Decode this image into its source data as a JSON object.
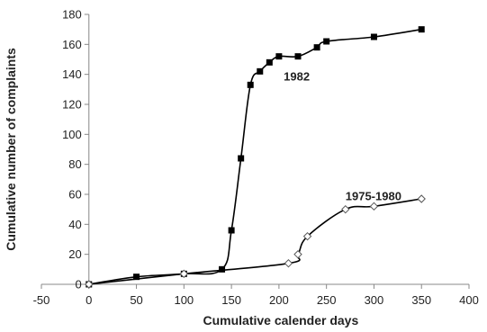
{
  "chart_data": {
    "type": "line",
    "title": "",
    "xlabel": "Cumulative calender days",
    "ylabel": "Cumulative number of complaints",
    "xlim": [
      -50,
      400
    ],
    "ylim": [
      0,
      180
    ],
    "x_ticks": [
      -50,
      0,
      50,
      100,
      150,
      200,
      250,
      300,
      350,
      400
    ],
    "y_ticks": [
      0,
      20,
      40,
      60,
      80,
      100,
      120,
      140,
      160,
      180
    ],
    "grid": false,
    "legend": "none",
    "series": [
      {
        "name": "1982",
        "marker": "filled-square",
        "color": "#000000",
        "x": [
          0,
          50,
          100,
          140,
          150,
          160,
          170,
          180,
          190,
          200,
          220,
          240,
          250,
          300,
          350
        ],
        "y": [
          0,
          5,
          7,
          10,
          36,
          84,
          133,
          142,
          148,
          152,
          152,
          158,
          162,
          165,
          170
        ]
      },
      {
        "name": "1975-1980",
        "marker": "open-diamond",
        "color": "#000000",
        "x": [
          0,
          100,
          210,
          220,
          230,
          270,
          300,
          350
        ],
        "y": [
          0,
          7,
          14,
          20,
          32,
          50,
          52,
          57
        ]
      }
    ]
  }
}
